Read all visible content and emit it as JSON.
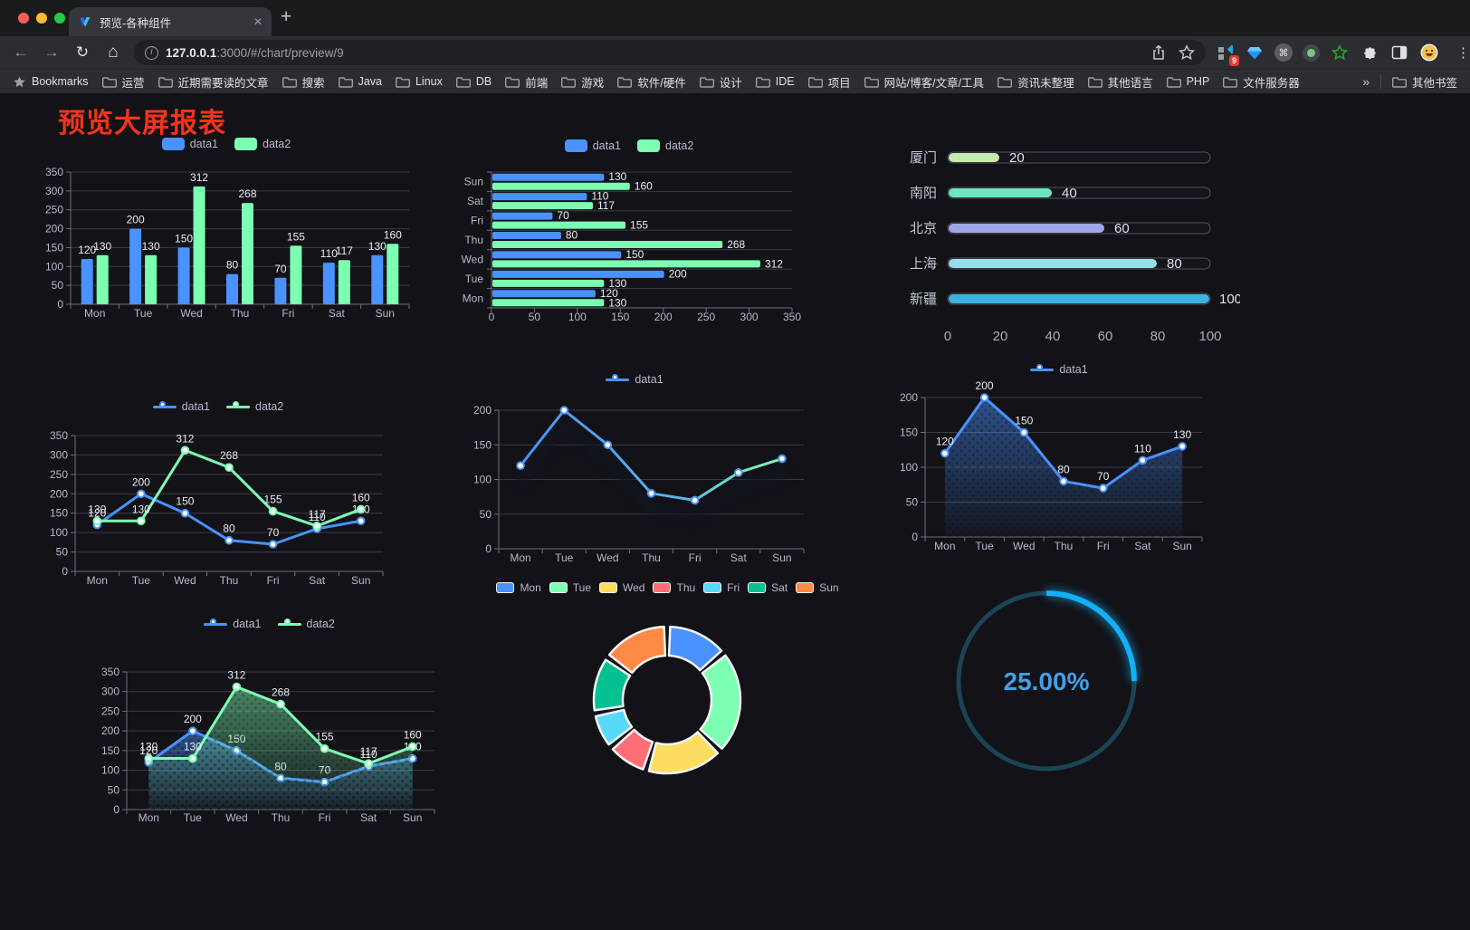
{
  "browser": {
    "tab": {
      "title": "预览-各种组件"
    },
    "address": {
      "host": "127.0.0.1",
      "rest": ":3000/#/chart/preview/9"
    },
    "extensions_badge": "9",
    "bookmarks_bar": {
      "leading": "Bookmarks",
      "folders": [
        "运营",
        "近期需要读的文章",
        "搜索",
        "Java",
        "Linux",
        "DB",
        "前端",
        "游戏",
        "软件/硬件",
        "设计",
        "IDE",
        "项目",
        "网站/博客/文章/工具",
        "资讯未整理",
        "其他语言",
        "PHP",
        "文件服务器"
      ],
      "overflow": "»",
      "trailing": "其他书签"
    }
  },
  "page": {
    "heading": "预览大屏报表",
    "heading_color": "#f4331c"
  },
  "chart_data": [
    {
      "id": "grouped-bar",
      "type": "bar",
      "orientation": "vertical",
      "categories": [
        "Mon",
        "Tue",
        "Wed",
        "Thu",
        "Fri",
        "Sat",
        "Sun"
      ],
      "series": [
        {
          "name": "data1",
          "color": "#4992ff",
          "values": [
            120,
            200,
            150,
            80,
            70,
            110,
            130
          ]
        },
        {
          "name": "data2",
          "color": "#7cffb2",
          "values": [
            130,
            130,
            312,
            268,
            155,
            117,
            160
          ]
        }
      ],
      "ylim": [
        0,
        350
      ],
      "ytick": 50,
      "legend_position": "top",
      "value_labels": true,
      "grid": true
    },
    {
      "id": "hbar",
      "type": "bar",
      "orientation": "horizontal",
      "categories": [
        "Mon",
        "Tue",
        "Wed",
        "Thu",
        "Fri",
        "Sat",
        "Sun"
      ],
      "series": [
        {
          "name": "data1",
          "color": "#4992ff",
          "values": [
            120,
            200,
            150,
            80,
            70,
            110,
            130
          ]
        },
        {
          "name": "data2",
          "color": "#7cffb2",
          "values": [
            130,
            130,
            312,
            268,
            155,
            117,
            160
          ]
        }
      ],
      "xlim": [
        0,
        350
      ],
      "xtick": 50,
      "legend_position": "top",
      "value_labels": true,
      "grid": true
    },
    {
      "id": "capsule",
      "type": "bar",
      "subtype": "capsule",
      "xlim": [
        0,
        100
      ],
      "xtick": 20,
      "rows": [
        {
          "label": "厦门",
          "value": 20,
          "color": "#c4ebad"
        },
        {
          "label": "南阳",
          "value": 40,
          "color": "#6be6c1"
        },
        {
          "label": "北京",
          "value": 60,
          "color": "#a0a7e6"
        },
        {
          "label": "上海",
          "value": 80,
          "color": "#96dee8"
        },
        {
          "label": "新疆",
          "value": 100,
          "color": "#3fb1e3"
        }
      ]
    },
    {
      "id": "line-two",
      "type": "line",
      "categories": [
        "Mon",
        "Tue",
        "Wed",
        "Thu",
        "Fri",
        "Sat",
        "Sun"
      ],
      "series": [
        {
          "name": "data1",
          "color": "#4992ff",
          "values": [
            120,
            200,
            150,
            80,
            70,
            110,
            130
          ]
        },
        {
          "name": "data2",
          "color": "#7cffb2",
          "values": [
            130,
            130,
            312,
            268,
            155,
            117,
            160
          ]
        }
      ],
      "ylim": [
        0,
        350
      ],
      "ytick": 50,
      "legend_position": "top",
      "value_labels": true,
      "grid": true
    },
    {
      "id": "line-gradient",
      "type": "line",
      "categories": [
        "Mon",
        "Tue",
        "Wed",
        "Thu",
        "Fri",
        "Sat",
        "Sun"
      ],
      "series": [
        {
          "name": "data1",
          "gradient": [
            "#4992ff",
            "#7cffb2"
          ],
          "values": [
            120,
            200,
            150,
            80,
            70,
            110,
            130
          ]
        }
      ],
      "ylim": [
        0,
        200
      ],
      "ytick": 50,
      "legend_position": "top",
      "value_labels": false,
      "line_shadow": true,
      "grid": true
    },
    {
      "id": "area-single",
      "type": "area",
      "categories": [
        "Mon",
        "Tue",
        "Wed",
        "Thu",
        "Fri",
        "Sat",
        "Sun"
      ],
      "series": [
        {
          "name": "data1",
          "color": "#4992ff",
          "values": [
            120,
            200,
            150,
            80,
            70,
            110,
            130
          ],
          "area": true
        }
      ],
      "ylim": [
        0,
        200
      ],
      "ytick": 50,
      "legend_position": "top",
      "value_labels": true,
      "grid": true
    },
    {
      "id": "area-two",
      "type": "area",
      "categories": [
        "Mon",
        "Tue",
        "Wed",
        "Thu",
        "Fri",
        "Sat",
        "Sun"
      ],
      "series": [
        {
          "name": "data1",
          "color": "#4992ff",
          "values": [
            120,
            200,
            150,
            80,
            70,
            110,
            130
          ],
          "area": true
        },
        {
          "name": "data2",
          "color": "#7cffb2",
          "values": [
            130,
            130,
            312,
            268,
            155,
            117,
            160
          ],
          "area": true
        }
      ],
      "ylim": [
        0,
        350
      ],
      "ytick": 50,
      "legend_position": "top",
      "value_labels": true,
      "grid": true
    },
    {
      "id": "donut",
      "type": "pie",
      "inner_radius_pct": 60,
      "legend_position": "top",
      "slices": [
        {
          "name": "Mon",
          "value": 120,
          "color": "#4992ff"
        },
        {
          "name": "Tue",
          "value": 200,
          "color": "#7cffb2"
        },
        {
          "name": "Wed",
          "value": 150,
          "color": "#fddd60"
        },
        {
          "name": "Thu",
          "value": 80,
          "color": "#ff6e76"
        },
        {
          "name": "Fri",
          "value": 70,
          "color": "#58d9f9"
        },
        {
          "name": "Sat",
          "value": 110,
          "color": "#05c091"
        },
        {
          "name": "Sun",
          "value": 130,
          "color": "#ff8a45"
        }
      ]
    },
    {
      "id": "progress",
      "type": "gauge",
      "percent": 25,
      "label": "25.00%",
      "color": "#12b0f7",
      "track_color": "#1b4554",
      "text_color": "#41a0e8"
    }
  ]
}
